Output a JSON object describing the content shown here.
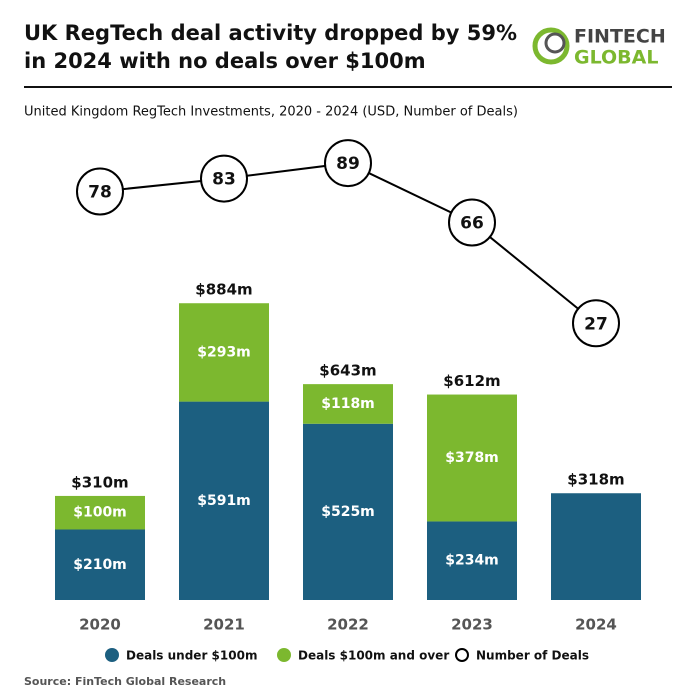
{
  "title": [
    "UK RegTech deal activity dropped by 59%",
    "in 2024 with no deals over $100m"
  ],
  "logo": {
    "line1": "FINTECH",
    "line2": "GLOBAL"
  },
  "source": "Source: FinTech Global Research",
  "chart_data": {
    "type": "stacked-bar-line",
    "subtitle": "United Kingdom RegTech Investments, 2020 - 2024 (USD, Number of Deals)",
    "categories": [
      "2020",
      "2021",
      "2022",
      "2023",
      "2024"
    ],
    "ylim": [
      0,
      1540
    ],
    "y2lim": [
      0,
      120
    ],
    "series": [
      {
        "name": "Deals under $100m",
        "color": "#1c5f80",
        "values": [
          210,
          591,
          525,
          234,
          318
        ],
        "value_labels": [
          "$210m",
          "$591m",
          "$525m",
          "$234m",
          null
        ]
      },
      {
        "name": "Deals $100m and over",
        "color": "#7cb82f",
        "values": [
          100,
          293,
          118,
          378,
          0
        ],
        "value_labels": [
          "$100m",
          "$293m",
          "$118m",
          "$378m",
          null
        ]
      },
      {
        "name": "Number of Deals",
        "type": "line",
        "axis": "y2",
        "color": "#000000",
        "values": [
          78,
          83,
          89,
          66,
          27
        ]
      }
    ],
    "totals": {
      "values": [
        310,
        884,
        643,
        612,
        318
      ],
      "value_labels": [
        "$310m",
        "$884m",
        "$643m",
        "$612m",
        "$318m"
      ]
    }
  }
}
